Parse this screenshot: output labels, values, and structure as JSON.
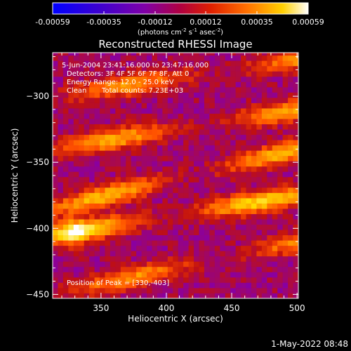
{
  "colorbar": {
    "ticks": [
      "-0.00059",
      "-0.00035",
      "-0.00012",
      "0.00012",
      "0.00035",
      "0.00059"
    ],
    "unit_main": "(photons cm",
    "unit_sup1": "-2",
    "unit_mid": " s",
    "unit_sup2": "-1",
    "unit_end": " asec",
    "unit_sup3": "-2",
    "unit_close": ")"
  },
  "annotations": {
    "time_range": "5-Jun-2004 23:41:16.000 to 23:47:16.000",
    "detectors": "Detectors: 3F 4F 5F 6F 7F 8F, Att 0",
    "energy": "Energy Range: 12.0 - 25.0 keV",
    "method": "Clean",
    "counts": "Total counts: 7.23E+03",
    "peak": "Position of Peak = [330,-403]"
  },
  "footer": {
    "date": "1-May-2022 08:48"
  },
  "colors": {
    "background": "#000000",
    "text": "#ffffff"
  },
  "chart_data": {
    "type": "heatmap",
    "title": "Reconstructed RHESSI Image",
    "xlabel": "Heliocentric X (arcsec)",
    "ylabel": "Heliocentric Y (arcsec)",
    "xlim": [
      313,
      501
    ],
    "ylim": [
      -453,
      -267
    ],
    "x_ticks": [
      350,
      400,
      450,
      500
    ],
    "y_ticks": [
      -300,
      -350,
      -400,
      -450
    ],
    "colormap": [
      "#0000ff",
      "#4a00c8",
      "#8a00a0",
      "#c01010",
      "#ff5000",
      "#ffa000",
      "#ffdc00",
      "#ffffff"
    ],
    "color_range": [
      -0.00059,
      0.00059
    ],
    "peak": [
      330,
      -403
    ],
    "stripe_features": [
      {
        "x_start": 313,
        "y_start": -300,
        "x_end": 501,
        "y_end": -272,
        "level": 0.0004
      },
      {
        "x_start": 313,
        "y_start": -340,
        "x_end": 501,
        "y_end": -310,
        "level": 0.00047
      },
      {
        "x_start": 313,
        "y_start": -385,
        "x_end": 501,
        "y_end": -340,
        "level": 0.0005
      },
      {
        "x_start": 313,
        "y_start": -405,
        "x_end": 501,
        "y_end": -375,
        "level": 0.00059
      },
      {
        "x_start": 313,
        "y_start": -450,
        "x_end": 501,
        "y_end": -410,
        "level": 0.0004
      }
    ]
  }
}
